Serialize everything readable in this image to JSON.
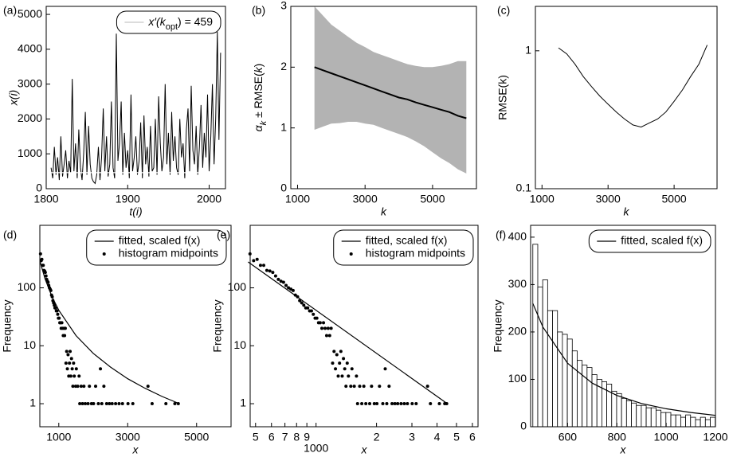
{
  "chart_data": [
    {
      "type": "line",
      "panel_label": "(a)",
      "xlabel": "t(i)",
      "ylabel": "x(i)",
      "color": "#000000",
      "x": [
        1806,
        1808,
        1810,
        1812,
        1814,
        1816,
        1818,
        1820,
        1822,
        1824,
        1826,
        1828,
        1830,
        1832,
        1834,
        1836,
        1838,
        1840,
        1842,
        1844,
        1846,
        1848,
        1850,
        1852,
        1854,
        1856,
        1858,
        1860,
        1862,
        1864,
        1866,
        1868,
        1870,
        1872,
        1874,
        1876,
        1878,
        1880,
        1882,
        1884,
        1886,
        1888,
        1890,
        1892,
        1894,
        1896,
        1898,
        1900,
        1902,
        1904,
        1906,
        1908,
        1910,
        1912,
        1914,
        1916,
        1918,
        1920,
        1922,
        1924,
        1926,
        1928,
        1930,
        1932,
        1934,
        1936,
        1938,
        1940,
        1942,
        1944,
        1946,
        1948,
        1950,
        1952,
        1954,
        1956,
        1958,
        1960,
        1962,
        1964,
        1966,
        1968,
        1970,
        1972,
        1974,
        1976,
        1978,
        1980,
        1982,
        1984,
        1986,
        1988,
        1990,
        1992,
        1994,
        1996,
        1998,
        2000,
        2002,
        2004,
        2006,
        2008,
        2010,
        2012,
        2014
      ],
      "values": [
        600,
        300,
        1200,
        400,
        900,
        250,
        1500,
        350,
        700,
        1100,
        300,
        800,
        450,
        3150,
        500,
        1300,
        300,
        1700,
        600,
        250,
        1000,
        2200,
        400,
        1800,
        700,
        300,
        200,
        150,
        400,
        1200,
        250,
        900,
        2300,
        500,
        1500,
        350,
        700,
        2500,
        600,
        300,
        4450,
        800,
        1300,
        2500,
        400,
        1600,
        600,
        1100,
        300,
        2700,
        500,
        900,
        1500,
        400,
        800,
        1900,
        300,
        2100,
        700,
        1200,
        350,
        1800,
        500,
        600,
        2000,
        400,
        2650,
        1300,
        500,
        900,
        3000,
        700,
        1600,
        400,
        2200,
        800,
        1500,
        600,
        400,
        2000,
        900,
        1300,
        300,
        1700,
        2300,
        500,
        2950,
        1100,
        700,
        1800,
        400,
        1200,
        2400,
        600,
        1600,
        900,
        2700,
        500,
        1500,
        3000,
        700,
        2000,
        4500,
        1400,
        3900
      ],
      "reference_line": {
        "name": [
          "x′(k",
          "opt",
          ") = 459"
        ],
        "value": 459,
        "color": "#ffffff"
      },
      "legend": "upper right",
      "xlim": [
        1800,
        2020
      ],
      "xticks": [
        1800,
        1900,
        2000
      ],
      "ylim": [
        0,
        5230
      ],
      "yticks": [
        0,
        1000,
        2000,
        3000,
        4000,
        5000
      ]
    },
    {
      "type": "band",
      "panel_label": "(b)",
      "xlabel": "k",
      "ylabel": [
        "α",
        "k",
        " ± RMSE(",
        "k",
        ")"
      ],
      "color": "#000000",
      "band_color": "#b3b3b3",
      "x": [
        1500,
        1750,
        2000,
        2250,
        2500,
        2750,
        3000,
        3250,
        3500,
        3750,
        4000,
        4250,
        4500,
        4750,
        5000,
        5250,
        5500,
        5750,
        6000
      ],
      "values": [
        2.0,
        1.95,
        1.9,
        1.85,
        1.8,
        1.75,
        1.7,
        1.65,
        1.6,
        1.55,
        1.5,
        1.47,
        1.42,
        1.38,
        1.34,
        1.3,
        1.26,
        1.2,
        1.16
      ],
      "upper": [
        3.0,
        2.85,
        2.7,
        2.6,
        2.5,
        2.4,
        2.33,
        2.25,
        2.2,
        2.15,
        2.1,
        2.05,
        2.02,
        2.0,
        2.0,
        2.02,
        2.05,
        2.1,
        2.1
      ],
      "lower": [
        0.97,
        1.02,
        1.07,
        1.08,
        1.1,
        1.1,
        1.07,
        1.05,
        1.0,
        0.95,
        0.9,
        0.85,
        0.78,
        0.7,
        0.6,
        0.5,
        0.42,
        0.32,
        0.25
      ],
      "xlim": [
        800,
        6300
      ],
      "xticks": [
        1000,
        3000,
        5000
      ],
      "ylim": [
        0,
        3
      ],
      "yticks": [
        0,
        1,
        2,
        3
      ]
    },
    {
      "type": "line",
      "panel_label": "(c)",
      "xlabel": "k",
      "ylabel": "RMSE(k)",
      "color": "#000000",
      "log_y": true,
      "x": [
        1500,
        1750,
        2000,
        2250,
        2500,
        2750,
        3000,
        3250,
        3500,
        3750,
        4000,
        4250,
        4500,
        4750,
        5000,
        5250,
        5500,
        5750,
        6000
      ],
      "values": [
        1.05,
        0.95,
        0.8,
        0.65,
        0.55,
        0.47,
        0.41,
        0.36,
        0.32,
        0.29,
        0.28,
        0.3,
        0.32,
        0.36,
        0.43,
        0.52,
        0.65,
        0.8,
        1.1
      ],
      "xlim": [
        800,
        6300
      ],
      "xticks": [
        1000,
        3000,
        5000
      ],
      "ylim": [
        0.1,
        2.1
      ],
      "yticks": [
        0.1,
        1
      ]
    },
    {
      "type": "scatter",
      "panel_label": "(d)",
      "xlabel": "x",
      "ylabel": "Frequency",
      "log_y": true,
      "legend": "upper right",
      "fit": {
        "name": "fitted, scaled f(x)",
        "color": "#000000",
        "x": [
          459,
          600,
          800,
          1000,
          1500,
          2000,
          2500,
          3000,
          3500,
          4000,
          4500
        ],
        "values": [
          280,
          144,
          71,
          41,
          15,
          7.4,
          4.3,
          2.7,
          1.85,
          1.33,
          1.0
        ]
      },
      "series": [
        {
          "name": "histogram midpoints",
          "color": "#000000",
          "x": [
            469,
            489,
            509,
            529,
            549,
            569,
            589,
            609,
            629,
            649,
            669,
            689,
            709,
            729,
            749,
            769,
            789,
            809,
            829,
            849,
            869,
            889,
            909,
            929,
            949,
            969,
            989,
            1009,
            1029,
            1049,
            1069,
            1089,
            1109,
            1129,
            1149,
            1169,
            1189,
            1209,
            1229,
            1249,
            1269,
            1289,
            1309,
            1329,
            1349,
            1369,
            1389,
            1409,
            1429,
            1449,
            1489,
            1509,
            1549,
            1589,
            1609,
            1649,
            1689,
            1729,
            1769,
            1849,
            1889,
            1949,
            2009,
            2069,
            2149,
            2209,
            2249,
            2309,
            2389,
            2469,
            2549,
            2649,
            2749,
            2849,
            3009,
            3149,
            3589,
            3709,
            4109,
            4369,
            4469
          ],
          "values": [
            385,
            295,
            310,
            245,
            245,
            200,
            195,
            185,
            160,
            140,
            130,
            125,
            110,
            100,
            95,
            90,
            75,
            70,
            60,
            55,
            50,
            45,
            45,
            40,
            40,
            35,
            30,
            30,
            25,
            25,
            20,
            25,
            20,
            15,
            20,
            15,
            20,
            5,
            8,
            4,
            7,
            3,
            5,
            8,
            3,
            6,
            4,
            2,
            5,
            3,
            2,
            4,
            2,
            3,
            1,
            2,
            1,
            2,
            1,
            1,
            2,
            1,
            1,
            2,
            1,
            4,
            1,
            2,
            1,
            1,
            1,
            1,
            1,
            1,
            1,
            1,
            2,
            1,
            1,
            1,
            1
          ]
        }
      ],
      "xlim": [
        450,
        6000
      ],
      "xticks": [
        1000,
        3000,
        5000
      ],
      "ylim": [
        0.4,
        1200
      ],
      "yticks": [
        1,
        10,
        100
      ]
    },
    {
      "type": "scatter",
      "panel_label": "(e)",
      "xlabel": "x",
      "ylabel": "Frequency",
      "log_x": true,
      "log_y": true,
      "legend": "upper right",
      "fit": {
        "name": "fitted, scaled f(x)",
        "color": "#000000",
        "x": [
          459,
          4500
        ],
        "values": [
          280,
          1.0
        ]
      },
      "series": [
        {
          "name": "histogram midpoints",
          "color": "#000000",
          "x": [
            469,
            489,
            509,
            529,
            549,
            569,
            589,
            609,
            629,
            649,
            669,
            689,
            709,
            729,
            749,
            769,
            789,
            809,
            829,
            849,
            869,
            889,
            909,
            929,
            949,
            969,
            989,
            1009,
            1029,
            1049,
            1069,
            1089,
            1109,
            1129,
            1149,
            1169,
            1189,
            1209,
            1229,
            1249,
            1269,
            1289,
            1309,
            1329,
            1349,
            1369,
            1389,
            1409,
            1429,
            1449,
            1489,
            1509,
            1549,
            1589,
            1609,
            1649,
            1689,
            1729,
            1769,
            1849,
            1889,
            1949,
            2009,
            2069,
            2149,
            2209,
            2249,
            2309,
            2389,
            2469,
            2549,
            2649,
            2749,
            2849,
            3009,
            3149,
            3589,
            3709,
            4109,
            4369,
            4469
          ],
          "values": [
            385,
            295,
            310,
            245,
            245,
            200,
            195,
            185,
            160,
            140,
            130,
            125,
            110,
            100,
            95,
            90,
            75,
            70,
            60,
            55,
            50,
            45,
            45,
            40,
            40,
            35,
            30,
            30,
            25,
            25,
            20,
            25,
            20,
            15,
            20,
            15,
            20,
            5,
            8,
            4,
            7,
            3,
            5,
            8,
            3,
            6,
            4,
            2,
            5,
            3,
            2,
            4,
            2,
            3,
            1,
            2,
            1,
            2,
            1,
            1,
            2,
            1,
            1,
            2,
            1,
            4,
            1,
            2,
            1,
            1,
            1,
            1,
            1,
            1,
            1,
            1,
            2,
            1,
            1,
            1,
            1
          ]
        }
      ],
      "xlim": [
        470,
        6400
      ],
      "xticks": [
        {
          "value": 500,
          "label": "5"
        },
        {
          "value": 600,
          "label": "6"
        },
        {
          "value": 700,
          "label": "7"
        },
        {
          "value": 800,
          "label": "8"
        },
        {
          "value": 900,
          "label": "9"
        },
        1000,
        {
          "value": 2000,
          "label": "2"
        },
        {
          "value": 3000,
          "label": "3"
        },
        {
          "value": 4000,
          "label": "4"
        },
        {
          "value": 5000,
          "label": "5"
        },
        {
          "value": 6000,
          "label": "6"
        }
      ],
      "ylim": [
        0.4,
        1200
      ],
      "yticks": [
        1,
        10,
        100
      ]
    },
    {
      "type": "histogram",
      "panel_label": "(f)",
      "xlabel": "x",
      "ylabel": "Frequency",
      "legend": "upper right",
      "bar_color": "#ffffff",
      "bins": [
        459,
        479,
        499,
        519,
        539,
        559,
        579,
        599,
        619,
        639,
        659,
        679,
        699,
        719,
        739,
        759,
        779,
        799,
        819,
        839,
        859,
        879,
        899,
        919,
        939,
        959,
        979,
        999,
        1019,
        1039,
        1059,
        1079,
        1099,
        1119,
        1139,
        1159,
        1179,
        1199
      ],
      "values": [
        385,
        295,
        310,
        245,
        245,
        200,
        195,
        185,
        160,
        140,
        130,
        125,
        110,
        100,
        95,
        90,
        75,
        70,
        60,
        55,
        50,
        45,
        45,
        40,
        40,
        35,
        30,
        30,
        25,
        25,
        20,
        25,
        20,
        15,
        20,
        15,
        20
      ],
      "fit": {
        "name": "fitted, scaled f(x)",
        "color": "#000000",
        "x": [
          459,
          500,
          600,
          700,
          800,
          900,
          1000,
          1100,
          1200
        ],
        "values": [
          260,
          210,
          134,
          92,
          66,
          49,
          38,
          30,
          24
        ]
      },
      "xlim": [
        450,
        1200
      ],
      "xticks": [
        600,
        800,
        1000,
        1200
      ],
      "ylim": [
        0,
        425
      ],
      "yticks": [
        0,
        100,
        200,
        300,
        400
      ]
    }
  ]
}
